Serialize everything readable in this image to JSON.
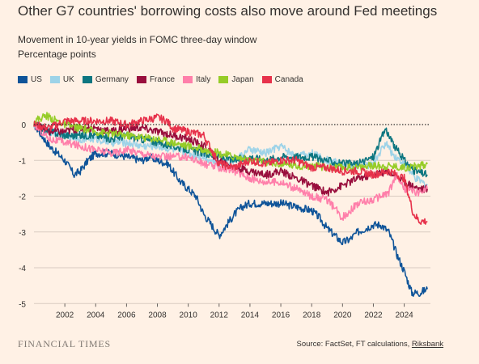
{
  "page": {
    "title": "Other G7 countries' borrowing costs also move around Fed meetings",
    "subtitle_line1": "Movement in 10-year yields in FOMC three-day window",
    "subtitle_line2": "Percentage points",
    "logo": "FINANCIAL TIMES",
    "source_prefix": "Source: FactSet, FT calculations, ",
    "source_link": "Riksbank"
  },
  "chart_data": {
    "type": "line",
    "title": "Other G7 countries' borrowing costs also move around Fed meetings",
    "subtitle": "Movement in 10-year yields in FOMC three-day window",
    "ylabel": "Percentage points",
    "xlim": [
      2000,
      2025.7
    ],
    "ylim": [
      -5,
      0.3
    ],
    "x_ticks": [
      2002,
      2004,
      2006,
      2008,
      2010,
      2012,
      2014,
      2016,
      2018,
      2020,
      2022,
      2024
    ],
    "y_ticks": [
      0,
      -1,
      -2,
      -3,
      -4,
      -5
    ],
    "zero_line": "dotted",
    "grid": "horizontal",
    "legend_position": "top-left",
    "series": [
      {
        "name": "US",
        "color": "#0F5499",
        "x": [
          2000,
          2000.5,
          2001,
          2001.5,
          2002,
          2002.6,
          2003,
          2003.5,
          2004,
          2005,
          2006,
          2007,
          2007.5,
          2008,
          2008.7,
          2009,
          2009.5,
          2010,
          2010.5,
          2011,
          2011.5,
          2012,
          2012.5,
          2013,
          2013.5,
          2014,
          2015,
          2016,
          2017,
          2018,
          2018.5,
          2019,
          2019.5,
          2020,
          2020.5,
          2021,
          2021.5,
          2022,
          2022.5,
          2023,
          2023.5,
          2024,
          2024.5,
          2025,
          2025.5
        ],
        "y": [
          0,
          -0.3,
          -0.6,
          -0.8,
          -1.0,
          -1.4,
          -1.3,
          -1.0,
          -0.8,
          -0.8,
          -0.9,
          -1.0,
          -0.9,
          -1.0,
          -1.1,
          -1.3,
          -1.6,
          -1.8,
          -2.0,
          -2.5,
          -2.8,
          -3.1,
          -2.8,
          -2.5,
          -2.3,
          -2.2,
          -2.2,
          -2.2,
          -2.3,
          -2.4,
          -2.6,
          -2.9,
          -3.1,
          -3.3,
          -3.2,
          -3.0,
          -2.9,
          -2.8,
          -2.8,
          -3.0,
          -3.6,
          -4.1,
          -4.7,
          -4.7,
          -4.6
        ]
      },
      {
        "name": "UK",
        "color": "#9DD3E8",
        "x": [
          2000,
          2001,
          2002,
          2003,
          2004,
          2005,
          2006,
          2007,
          2008,
          2009,
          2010,
          2011,
          2012,
          2013,
          2014,
          2015,
          2016,
          2017,
          2018,
          2019,
          2020,
          2021,
          2022,
          2022.8,
          2023.2,
          2024,
          2024.7,
          2025.5
        ],
        "y": [
          0,
          -0.2,
          -0.3,
          -0.4,
          -0.4,
          -0.5,
          -0.5,
          -0.6,
          -0.6,
          -0.7,
          -0.8,
          -0.9,
          -1.1,
          -1.0,
          -0.7,
          -0.8,
          -0.6,
          -0.9,
          -0.8,
          -1.0,
          -1.1,
          -1.2,
          -1.1,
          -0.5,
          -0.8,
          -1.1,
          -1.5,
          -1.7
        ]
      },
      {
        "name": "Germany",
        "color": "#0D7680",
        "x": [
          2000,
          2001,
          2002,
          2003,
          2004,
          2005,
          2006,
          2007,
          2008,
          2009,
          2010,
          2011,
          2012,
          2013,
          2014,
          2015,
          2016,
          2017,
          2018,
          2019,
          2020,
          2021,
          2022,
          2022.8,
          2023.2,
          2024,
          2024.7,
          2025.5
        ],
        "y": [
          0,
          -0.2,
          -0.3,
          -0.3,
          -0.3,
          -0.4,
          -0.3,
          -0.4,
          -0.5,
          -0.6,
          -0.7,
          -0.8,
          -0.9,
          -1.0,
          -0.9,
          -1.0,
          -0.9,
          -0.9,
          -0.9,
          -1.0,
          -1.1,
          -1.1,
          -0.9,
          -0.1,
          -0.5,
          -1.0,
          -1.3,
          -1.4
        ]
      },
      {
        "name": "France",
        "color": "#990F3D",
        "x": [
          2000,
          2001,
          2002,
          2003,
          2004,
          2005,
          2006,
          2007,
          2008,
          2009,
          2010,
          2011,
          2012,
          2013,
          2014,
          2015,
          2016,
          2017,
          2018,
          2019,
          2020,
          2021,
          2022,
          2023,
          2024,
          2025,
          2025.5
        ],
        "y": [
          0,
          -0.2,
          -0.2,
          -0.1,
          -0.1,
          -0.2,
          -0.1,
          -0.1,
          -0.2,
          -0.3,
          -0.4,
          -0.6,
          -1.0,
          -1.2,
          -1.3,
          -1.4,
          -1.3,
          -1.5,
          -1.7,
          -1.9,
          -1.7,
          -1.5,
          -1.4,
          -1.3,
          -1.6,
          -1.8,
          -1.8
        ]
      },
      {
        "name": "Italy",
        "color": "#FF7FAA",
        "x": [
          2000,
          2001,
          2002,
          2003,
          2004,
          2005,
          2006,
          2007,
          2008,
          2009,
          2010,
          2011,
          2012,
          2013,
          2014,
          2015,
          2016,
          2017,
          2018,
          2019,
          2020,
          2021,
          2022,
          2023,
          2023.5,
          2024,
          2025,
          2025.5
        ],
        "y": [
          0,
          -0.4,
          -0.5,
          -0.6,
          -0.7,
          -0.8,
          -0.7,
          -0.8,
          -0.9,
          -0.9,
          -0.9,
          -1.1,
          -1.2,
          -1.3,
          -1.5,
          -1.6,
          -1.6,
          -1.8,
          -2.0,
          -2.1,
          -2.6,
          -2.2,
          -2.1,
          -1.9,
          -1.4,
          -1.8,
          -1.9,
          -1.8
        ]
      },
      {
        "name": "Japan",
        "color": "#96CC28",
        "x": [
          2000,
          2000.8,
          2001.5,
          2002,
          2003,
          2004,
          2005,
          2006,
          2007,
          2008,
          2009,
          2010,
          2011,
          2012,
          2013,
          2014,
          2015,
          2016,
          2017,
          2018,
          2019,
          2020,
          2021,
          2022,
          2023,
          2024,
          2025,
          2025.5
        ],
        "y": [
          0.1,
          0.25,
          0.1,
          0,
          -0.1,
          -0.2,
          -0.25,
          -0.3,
          -0.35,
          -0.4,
          -0.5,
          -0.6,
          -0.7,
          -0.8,
          -0.9,
          -1.0,
          -1.05,
          -1.1,
          -1.15,
          -1.15,
          -1.2,
          -1.2,
          -1.2,
          -1.15,
          -1.15,
          -1.2,
          -1.15,
          -1.1
        ]
      },
      {
        "name": "Canada",
        "color": "#E7324B",
        "x": [
          2000,
          2001,
          2002,
          2003,
          2004,
          2005,
          2006,
          2007,
          2008,
          2008.6,
          2009,
          2010,
          2011,
          2012,
          2013,
          2014,
          2015,
          2016,
          2017,
          2018,
          2019,
          2020,
          2021,
          2022,
          2023,
          2024,
          2024.6,
          2025,
          2025.5
        ],
        "y": [
          0,
          -0.1,
          0.1,
          0.1,
          0.1,
          0.1,
          0,
          0.1,
          0.2,
          0.1,
          -0.1,
          -0.2,
          -0.3,
          -1.1,
          -1.2,
          -1.0,
          -1.1,
          -1.0,
          -1.0,
          -1.2,
          -1.2,
          -1.3,
          -1.3,
          -1.4,
          -1.3,
          -1.5,
          -2.5,
          -2.7,
          -2.7
        ]
      }
    ]
  }
}
